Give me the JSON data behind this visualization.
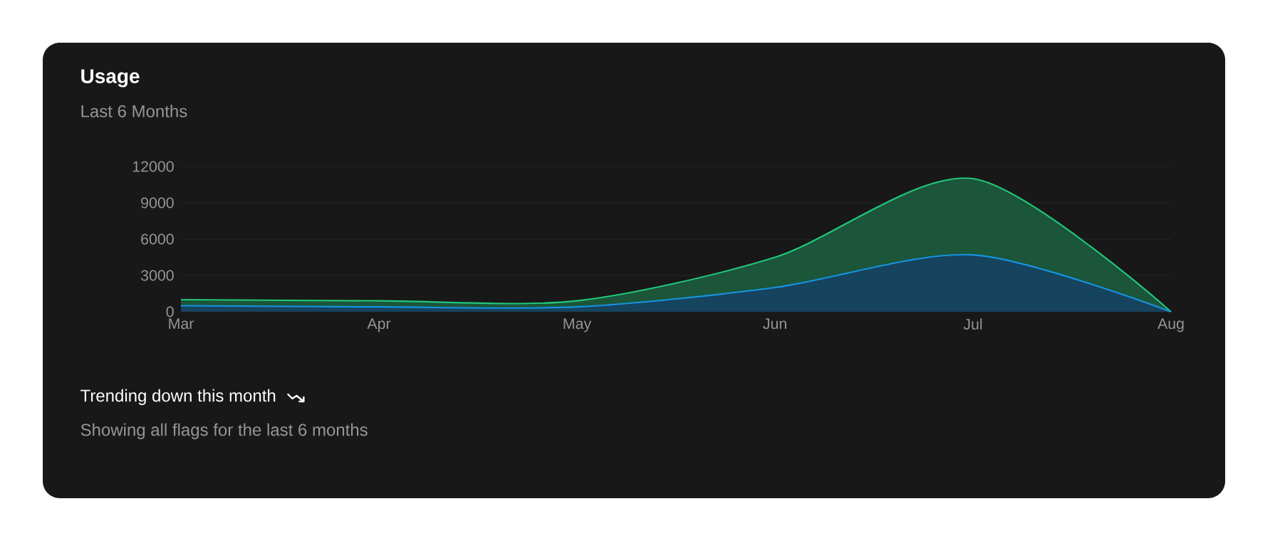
{
  "chart_data": {
    "type": "area",
    "title": "Usage",
    "subtitle": "Last 6 Months",
    "categories": [
      "Mar",
      "Apr",
      "May",
      "Jun",
      "Jul",
      "Aug"
    ],
    "series": [
      {
        "color": "#22c77a",
        "values": [
          1000,
          900,
          900,
          4500,
          11000,
          0
        ]
      },
      {
        "color": "#1594e0",
        "values": [
          500,
          400,
          400,
          2000,
          4700,
          0
        ]
      }
    ],
    "ylim": [
      0,
      12000
    ],
    "yticks": [
      0,
      3000,
      6000,
      9000,
      12000
    ],
    "grid": "y",
    "annotations": [
      "Trending down this month",
      "Showing all flags for the last 6 months"
    ]
  }
}
